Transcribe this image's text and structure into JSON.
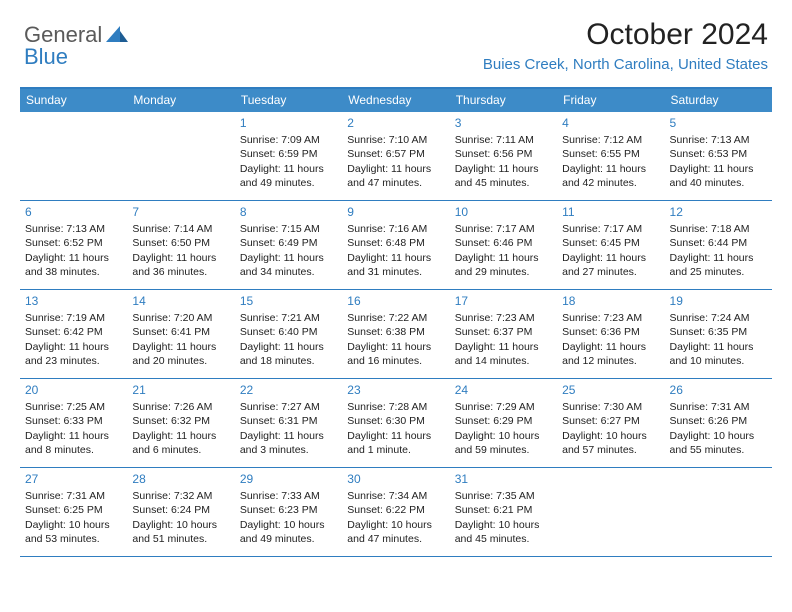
{
  "logo": {
    "general": "General",
    "blue": "Blue"
  },
  "title": "October 2024",
  "location": "Buies Creek, North Carolina, United States",
  "accent_color": "#3d8bc8",
  "border_color": "#2f7dc0",
  "day_headers": [
    "Sunday",
    "Monday",
    "Tuesday",
    "Wednesday",
    "Thursday",
    "Friday",
    "Saturday"
  ],
  "weeks": [
    [
      null,
      null,
      {
        "n": "1",
        "sr": "Sunrise: 7:09 AM",
        "ss": "Sunset: 6:59 PM",
        "dl": "Daylight: 11 hours and 49 minutes."
      },
      {
        "n": "2",
        "sr": "Sunrise: 7:10 AM",
        "ss": "Sunset: 6:57 PM",
        "dl": "Daylight: 11 hours and 47 minutes."
      },
      {
        "n": "3",
        "sr": "Sunrise: 7:11 AM",
        "ss": "Sunset: 6:56 PM",
        "dl": "Daylight: 11 hours and 45 minutes."
      },
      {
        "n": "4",
        "sr": "Sunrise: 7:12 AM",
        "ss": "Sunset: 6:55 PM",
        "dl": "Daylight: 11 hours and 42 minutes."
      },
      {
        "n": "5",
        "sr": "Sunrise: 7:13 AM",
        "ss": "Sunset: 6:53 PM",
        "dl": "Daylight: 11 hours and 40 minutes."
      }
    ],
    [
      {
        "n": "6",
        "sr": "Sunrise: 7:13 AM",
        "ss": "Sunset: 6:52 PM",
        "dl": "Daylight: 11 hours and 38 minutes."
      },
      {
        "n": "7",
        "sr": "Sunrise: 7:14 AM",
        "ss": "Sunset: 6:50 PM",
        "dl": "Daylight: 11 hours and 36 minutes."
      },
      {
        "n": "8",
        "sr": "Sunrise: 7:15 AM",
        "ss": "Sunset: 6:49 PM",
        "dl": "Daylight: 11 hours and 34 minutes."
      },
      {
        "n": "9",
        "sr": "Sunrise: 7:16 AM",
        "ss": "Sunset: 6:48 PM",
        "dl": "Daylight: 11 hours and 31 minutes."
      },
      {
        "n": "10",
        "sr": "Sunrise: 7:17 AM",
        "ss": "Sunset: 6:46 PM",
        "dl": "Daylight: 11 hours and 29 minutes."
      },
      {
        "n": "11",
        "sr": "Sunrise: 7:17 AM",
        "ss": "Sunset: 6:45 PM",
        "dl": "Daylight: 11 hours and 27 minutes."
      },
      {
        "n": "12",
        "sr": "Sunrise: 7:18 AM",
        "ss": "Sunset: 6:44 PM",
        "dl": "Daylight: 11 hours and 25 minutes."
      }
    ],
    [
      {
        "n": "13",
        "sr": "Sunrise: 7:19 AM",
        "ss": "Sunset: 6:42 PM",
        "dl": "Daylight: 11 hours and 23 minutes."
      },
      {
        "n": "14",
        "sr": "Sunrise: 7:20 AM",
        "ss": "Sunset: 6:41 PM",
        "dl": "Daylight: 11 hours and 20 minutes."
      },
      {
        "n": "15",
        "sr": "Sunrise: 7:21 AM",
        "ss": "Sunset: 6:40 PM",
        "dl": "Daylight: 11 hours and 18 minutes."
      },
      {
        "n": "16",
        "sr": "Sunrise: 7:22 AM",
        "ss": "Sunset: 6:38 PM",
        "dl": "Daylight: 11 hours and 16 minutes."
      },
      {
        "n": "17",
        "sr": "Sunrise: 7:23 AM",
        "ss": "Sunset: 6:37 PM",
        "dl": "Daylight: 11 hours and 14 minutes."
      },
      {
        "n": "18",
        "sr": "Sunrise: 7:23 AM",
        "ss": "Sunset: 6:36 PM",
        "dl": "Daylight: 11 hours and 12 minutes."
      },
      {
        "n": "19",
        "sr": "Sunrise: 7:24 AM",
        "ss": "Sunset: 6:35 PM",
        "dl": "Daylight: 11 hours and 10 minutes."
      }
    ],
    [
      {
        "n": "20",
        "sr": "Sunrise: 7:25 AM",
        "ss": "Sunset: 6:33 PM",
        "dl": "Daylight: 11 hours and 8 minutes."
      },
      {
        "n": "21",
        "sr": "Sunrise: 7:26 AM",
        "ss": "Sunset: 6:32 PM",
        "dl": "Daylight: 11 hours and 6 minutes."
      },
      {
        "n": "22",
        "sr": "Sunrise: 7:27 AM",
        "ss": "Sunset: 6:31 PM",
        "dl": "Daylight: 11 hours and 3 minutes."
      },
      {
        "n": "23",
        "sr": "Sunrise: 7:28 AM",
        "ss": "Sunset: 6:30 PM",
        "dl": "Daylight: 11 hours and 1 minute."
      },
      {
        "n": "24",
        "sr": "Sunrise: 7:29 AM",
        "ss": "Sunset: 6:29 PM",
        "dl": "Daylight: 10 hours and 59 minutes."
      },
      {
        "n": "25",
        "sr": "Sunrise: 7:30 AM",
        "ss": "Sunset: 6:27 PM",
        "dl": "Daylight: 10 hours and 57 minutes."
      },
      {
        "n": "26",
        "sr": "Sunrise: 7:31 AM",
        "ss": "Sunset: 6:26 PM",
        "dl": "Daylight: 10 hours and 55 minutes."
      }
    ],
    [
      {
        "n": "27",
        "sr": "Sunrise: 7:31 AM",
        "ss": "Sunset: 6:25 PM",
        "dl": "Daylight: 10 hours and 53 minutes."
      },
      {
        "n": "28",
        "sr": "Sunrise: 7:32 AM",
        "ss": "Sunset: 6:24 PM",
        "dl": "Daylight: 10 hours and 51 minutes."
      },
      {
        "n": "29",
        "sr": "Sunrise: 7:33 AM",
        "ss": "Sunset: 6:23 PM",
        "dl": "Daylight: 10 hours and 49 minutes."
      },
      {
        "n": "30",
        "sr": "Sunrise: 7:34 AM",
        "ss": "Sunset: 6:22 PM",
        "dl": "Daylight: 10 hours and 47 minutes."
      },
      {
        "n": "31",
        "sr": "Sunrise: 7:35 AM",
        "ss": "Sunset: 6:21 PM",
        "dl": "Daylight: 10 hours and 45 minutes."
      },
      null,
      null
    ]
  ]
}
